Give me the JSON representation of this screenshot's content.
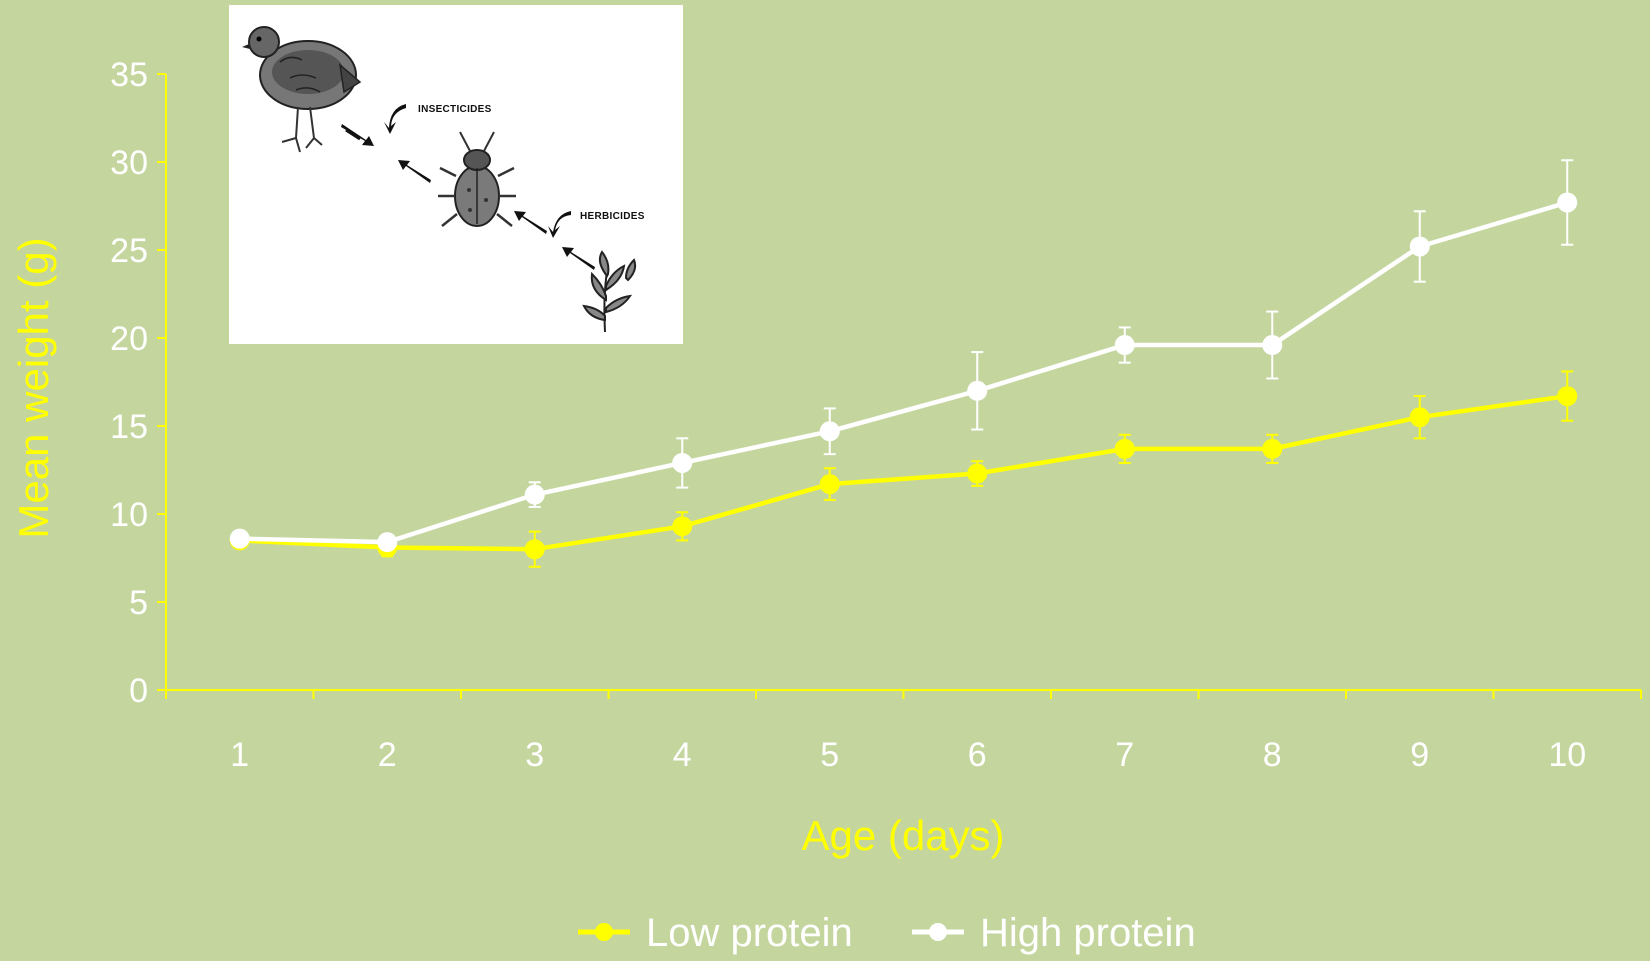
{
  "colors": {
    "background": "#c4d69e",
    "axis": "#ffff00",
    "low_protein": "#ffff00",
    "high_protein": "#ffffff",
    "tick_text": "#ffffff"
  },
  "inset": {
    "label_insecticides": "INSECTICIDES",
    "label_herbicides": "HERBICIDES",
    "icons": [
      "quail-icon",
      "beetle-icon",
      "plant-icon",
      "arrow-icon"
    ]
  },
  "chart_data": {
    "type": "line",
    "title": "",
    "xlabel": "Age (days)",
    "ylabel": "Mean weight (g)",
    "categories": [
      "1",
      "2",
      "3",
      "4",
      "5",
      "6",
      "7",
      "8",
      "9",
      "10"
    ],
    "ylim": [
      0,
      35
    ],
    "yticks": [
      0,
      5,
      10,
      15,
      20,
      25,
      30,
      35
    ],
    "grid": false,
    "legend_position": "bottom",
    "series": [
      {
        "name": "Low protein",
        "color": "#ffff00",
        "values": [
          8.5,
          8.1,
          8.0,
          9.3,
          11.7,
          12.3,
          13.7,
          13.7,
          15.5,
          16.7
        ],
        "errors": [
          0.3,
          0.5,
          1.0,
          0.8,
          0.9,
          0.7,
          0.8,
          0.8,
          1.2,
          1.4
        ]
      },
      {
        "name": "High protein",
        "color": "#ffffff",
        "values": [
          8.6,
          8.4,
          11.1,
          12.9,
          14.7,
          17.0,
          19.6,
          19.6,
          25.2,
          27.7
        ],
        "errors": [
          0.3,
          0.3,
          0.7,
          1.4,
          1.3,
          2.2,
          1.0,
          1.9,
          2.0,
          2.4
        ]
      }
    ]
  }
}
